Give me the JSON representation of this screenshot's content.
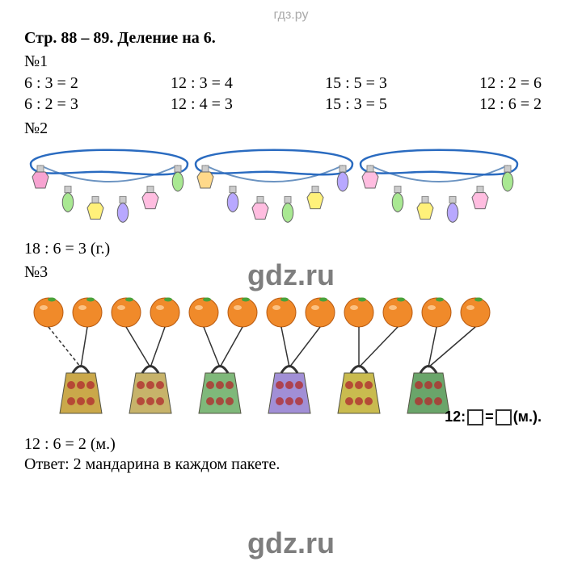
{
  "header": "гдз.ру",
  "title": "Стр. 88 – 89. Деление на 6.",
  "section1": {
    "label": "№1",
    "columns": [
      [
        "6 : 3 = 2",
        "6 : 2 = 3"
      ],
      [
        "12 : 3 = 4",
        "12 : 4 = 3"
      ],
      [
        "15 : 5 = 3",
        "15 : 3 = 5"
      ],
      [
        "12 : 2 = 6",
        "12 : 6 = 2"
      ]
    ]
  },
  "section2": {
    "label": "№2",
    "garland": {
      "bulb_colors": [
        "#f7a3d1",
        "#a9e892",
        "#fff17a",
        "#b8a8ff",
        "#ffbde0",
        "#a9e892",
        "#ffd98a",
        "#b8a8ff",
        "#ffbde0",
        "#a9e892",
        "#fff17a",
        "#b8a8ff",
        "#ffbde0",
        "#a9e892",
        "#fff17a",
        "#b8a8ff",
        "#ffbde0",
        "#a9e892"
      ],
      "string_color": "#6b93c1",
      "circle_color": "#2a6bc0"
    },
    "result": "18 : 6 = 3 (г.)"
  },
  "section3": {
    "label": "№3",
    "oranges": {
      "count": 12,
      "fill": "#f08a2a",
      "leaf": "#4aa23a"
    },
    "bags": {
      "count": 6,
      "fills": [
        "#caa84a",
        "#c7b36a",
        "#7fb87a",
        "#a18fd6",
        "#c9bb4f",
        "#6aa56a"
      ],
      "pattern_color": "#b03030"
    },
    "line_color": "#333333",
    "formula": {
      "prefix": "12:",
      "eq": "=",
      "suffix": "(м.)."
    },
    "result": "12 : 6 = 2 (м.)",
    "answer": "Ответ: 2 мандарина в каждом пакете."
  },
  "watermark": "gdz.ru"
}
